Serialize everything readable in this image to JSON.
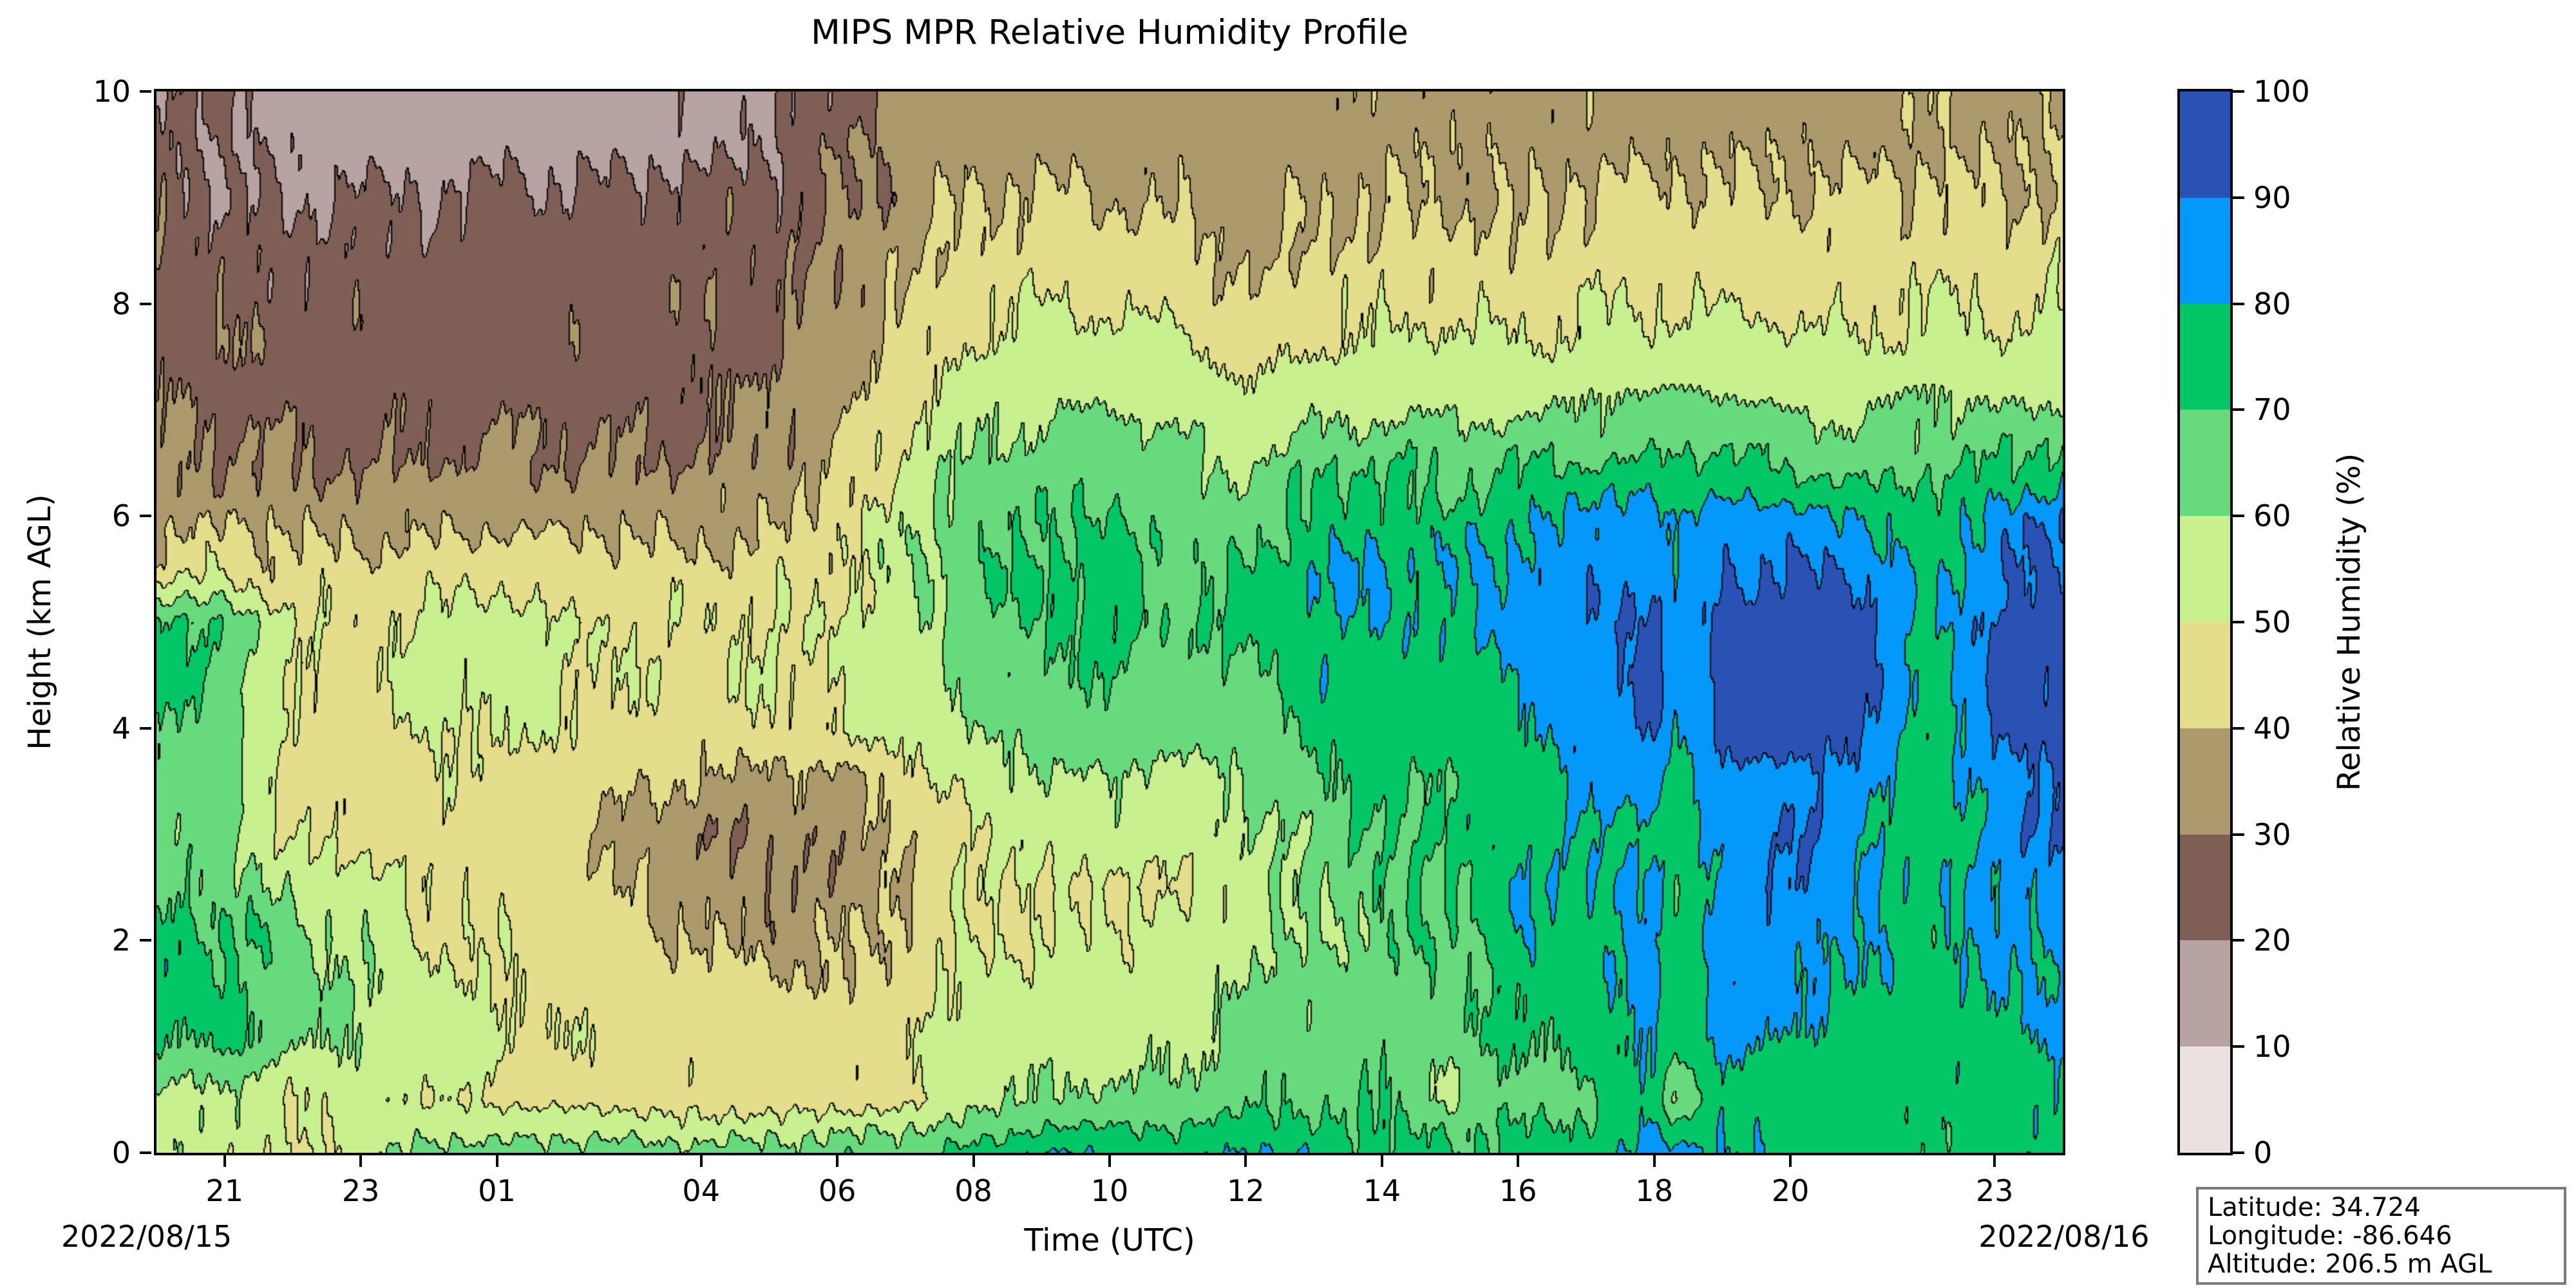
{
  "chart_data": {
    "type": "contour",
    "title": "MIPS MPR Relative Humidity Profile",
    "xlabel": "Time (UTC)",
    "ylabel": "Height (km AGL)",
    "x_axis": {
      "tick_labels": [
        "21",
        "23",
        "01",
        "04",
        "06",
        "08",
        "10",
        "12",
        "14",
        "16",
        "18",
        "20",
        "23"
      ],
      "tick_hours_after_2000utc": [
        1,
        3,
        5,
        8,
        10,
        12,
        14,
        16,
        18,
        20,
        22,
        24,
        27
      ],
      "range_hours_after_2000utc": [
        0,
        28
      ],
      "date_label_left": "2022/08/15",
      "date_label_right": "2022/08/16"
    },
    "y_axis": {
      "tick_labels": [
        "0",
        "2",
        "4",
        "6",
        "8",
        "10"
      ],
      "tick_values_km": [
        0,
        2,
        4,
        6,
        8,
        10
      ],
      "range_km": [
        0,
        10
      ]
    },
    "colorbar": {
      "label": "Relative Humidity (%)",
      "tick_labels": [
        "0",
        "10",
        "20",
        "30",
        "40",
        "50",
        "60",
        "70",
        "80",
        "90",
        "100"
      ],
      "tick_values": [
        0,
        10,
        20,
        30,
        40,
        50,
        60,
        70,
        80,
        90,
        100
      ],
      "levels": [
        0,
        10,
        20,
        30,
        40,
        50,
        60,
        70,
        80,
        90,
        100
      ],
      "band_colors_bottom_to_top": [
        "#eae1e0",
        "#b7a3a2",
        "#7f5e55",
        "#ac9a6d",
        "#e3dd8c",
        "#c9f08f",
        "#67da7d",
        "#03c667",
        "#0398f9",
        "#2a52b5"
      ]
    },
    "contour_line_color": "#000000",
    "annotation_box": {
      "lines": [
        "Latitude: 34.724",
        "Longitude: -86.646",
        "Altitude: 206.5 m AGL"
      ]
    },
    "grid": {
      "hours_after_2000utc": [
        0,
        1,
        2,
        3,
        4,
        5,
        6,
        7,
        8,
        9,
        10,
        11,
        12,
        13,
        14,
        15,
        16,
        17,
        18,
        19,
        20,
        21,
        22,
        22.3,
        23,
        24,
        25,
        26,
        27,
        28
      ],
      "heights_km_top_to_bottom": [
        10,
        9.5,
        9,
        8.5,
        8,
        7.5,
        7,
        6.5,
        6,
        5.5,
        5,
        4.5,
        4,
        3.5,
        3,
        2.5,
        2,
        1.5,
        1,
        0.5,
        0
      ],
      "rh_percent_rows_top_to_bottom": [
        [
          22,
          22,
          15,
          15,
          15,
          15,
          15,
          15,
          16,
          18,
          26,
          33,
          35,
          35,
          35,
          35,
          34,
          36,
          36,
          36,
          36,
          36,
          36,
          36,
          36,
          36,
          37,
          37,
          38,
          37
        ],
        [
          24,
          18,
          16,
          16,
          16,
          17,
          16,
          17,
          18,
          20,
          28,
          34,
          36,
          37,
          36,
          36,
          34,
          36,
          36,
          37,
          36,
          38,
          38,
          38,
          38,
          38,
          38,
          39,
          38,
          39
        ],
        [
          26,
          22,
          19,
          21,
          19,
          23,
          22,
          23,
          24,
          25,
          30,
          36,
          40,
          41,
          40,
          39,
          35,
          38,
          39,
          40,
          38,
          42,
          42,
          42,
          42,
          41,
          42,
          43,
          41,
          43
        ],
        [
          27,
          25,
          23,
          24,
          23,
          25,
          25,
          25,
          26,
          26,
          32,
          38,
          44,
          45,
          44,
          43,
          37,
          42,
          43,
          44,
          42,
          45,
          45,
          45,
          45,
          44,
          44,
          46,
          44,
          46
        ],
        [
          28,
          27,
          26,
          26,
          26,
          27,
          27,
          26,
          27,
          27,
          34,
          41,
          48,
          50,
          49,
          48,
          40,
          47,
          47,
          48,
          46,
          49,
          49,
          49,
          50,
          48,
          47,
          50,
          48,
          50
        ],
        [
          29,
          28,
          27,
          27,
          27,
          28,
          28,
          27,
          28,
          29,
          36,
          44,
          52,
          55,
          54,
          53,
          47,
          52,
          52,
          53,
          51,
          54,
          54,
          55,
          55,
          53,
          52,
          55,
          53,
          55
        ],
        [
          30,
          29,
          28,
          28,
          28,
          29,
          29,
          28,
          29,
          31,
          38,
          48,
          57,
          60,
          60,
          58,
          52,
          57,
          58,
          59,
          57,
          61,
          62,
          64,
          63,
          60,
          58,
          62,
          60,
          62
        ],
        [
          32,
          31,
          30,
          29,
          30,
          31,
          30,
          30,
          31,
          33,
          41,
          52,
          62,
          65,
          66,
          62,
          58,
          68,
          70,
          66,
          70,
          70,
          71,
          72,
          72,
          68,
          64,
          68,
          70,
          75
        ],
        [
          36,
          38,
          37,
          36,
          38,
          36,
          37,
          37,
          37,
          38,
          45,
          56,
          66,
          70,
          70,
          66,
          64,
          74,
          75,
          72,
          78,
          83,
          85,
          78,
          86,
          83,
          80,
          72,
          84,
          88
        ],
        [
          46,
          47,
          44,
          44,
          45,
          48,
          45,
          44,
          44,
          45,
          48,
          58,
          68,
          72,
          73,
          68,
          70,
          80,
          82,
          78,
          84,
          85,
          88,
          80,
          90,
          90,
          90,
          74,
          88,
          92
        ],
        [
          73,
          68,
          50,
          47,
          52,
          54,
          50,
          48,
          49,
          49,
          50,
          56,
          66,
          71,
          72,
          68,
          74,
          78,
          80,
          76,
          86,
          88,
          93,
          82,
          94,
          95,
          94,
          76,
          92,
          95
        ],
        [
          74,
          68,
          48,
          46,
          55,
          52,
          52,
          49,
          48,
          49,
          51,
          55,
          64,
          69,
          70,
          66,
          68,
          76,
          76,
          74,
          82,
          87,
          94,
          80,
          95,
          96,
          95,
          74,
          93,
          96
        ],
        [
          68,
          64,
          47,
          45,
          52,
          50,
          50,
          47,
          46,
          47,
          49,
          53,
          60,
          65,
          66,
          62,
          64,
          74,
          76,
          74,
          78,
          84,
          92,
          78,
          93,
          94,
          93,
          74,
          90,
          94
        ],
        [
          66,
          63,
          46,
          45,
          48,
          48,
          46,
          42,
          38,
          37,
          38,
          46,
          54,
          58,
          60,
          57,
          60,
          68,
          72,
          72,
          76,
          80,
          86,
          76,
          88,
          88,
          86,
          72,
          86,
          90
        ],
        [
          65,
          62,
          48,
          45,
          46,
          46,
          44,
          36,
          33,
          32,
          33,
          40,
          50,
          54,
          56,
          54,
          58,
          64,
          70,
          72,
          76,
          78,
          80,
          74,
          82,
          90,
          84,
          72,
          84,
          88
        ],
        [
          68,
          66,
          58,
          55,
          47,
          47,
          45,
          40,
          34,
          33,
          34,
          42,
          50,
          48,
          50,
          48,
          56,
          60,
          68,
          70,
          80,
          78,
          82,
          72,
          84,
          91,
          82,
          74,
          84,
          86
        ],
        [
          74,
          72,
          62,
          58,
          50,
          48,
          47,
          44,
          40,
          37,
          37,
          44,
          50,
          50,
          52,
          52,
          58,
          60,
          66,
          68,
          76,
          78,
          82,
          74,
          84,
          84,
          80,
          76,
          82,
          84
        ],
        [
          76,
          73,
          64,
          60,
          52,
          50,
          48,
          46,
          44,
          43,
          42,
          46,
          52,
          52,
          54,
          55,
          62,
          62,
          66,
          68,
          72,
          76,
          84,
          76,
          82,
          82,
          78,
          76,
          80,
          82
        ],
        [
          72,
          70,
          62,
          58,
          54,
          51,
          49,
          47,
          46,
          45,
          44,
          48,
          56,
          56,
          58,
          58,
          64,
          64,
          66,
          66,
          70,
          74,
          82,
          74,
          80,
          80,
          76,
          74,
          78,
          80
        ],
        [
          56,
          57,
          50,
          54,
          50,
          48,
          47,
          46,
          45,
          45,
          44,
          46,
          58,
          60,
          62,
          62,
          68,
          68,
          70,
          58,
          68,
          66,
          80,
          58,
          78,
          76,
          76,
          74,
          74,
          78
        ],
        [
          55,
          56,
          48,
          55,
          64,
          63,
          64,
          64,
          64,
          65,
          66,
          68,
          72,
          80,
          78,
          74,
          82,
          76,
          74,
          72,
          74,
          76,
          82,
          84,
          80,
          76,
          74,
          74,
          74,
          76
        ]
      ]
    }
  }
}
